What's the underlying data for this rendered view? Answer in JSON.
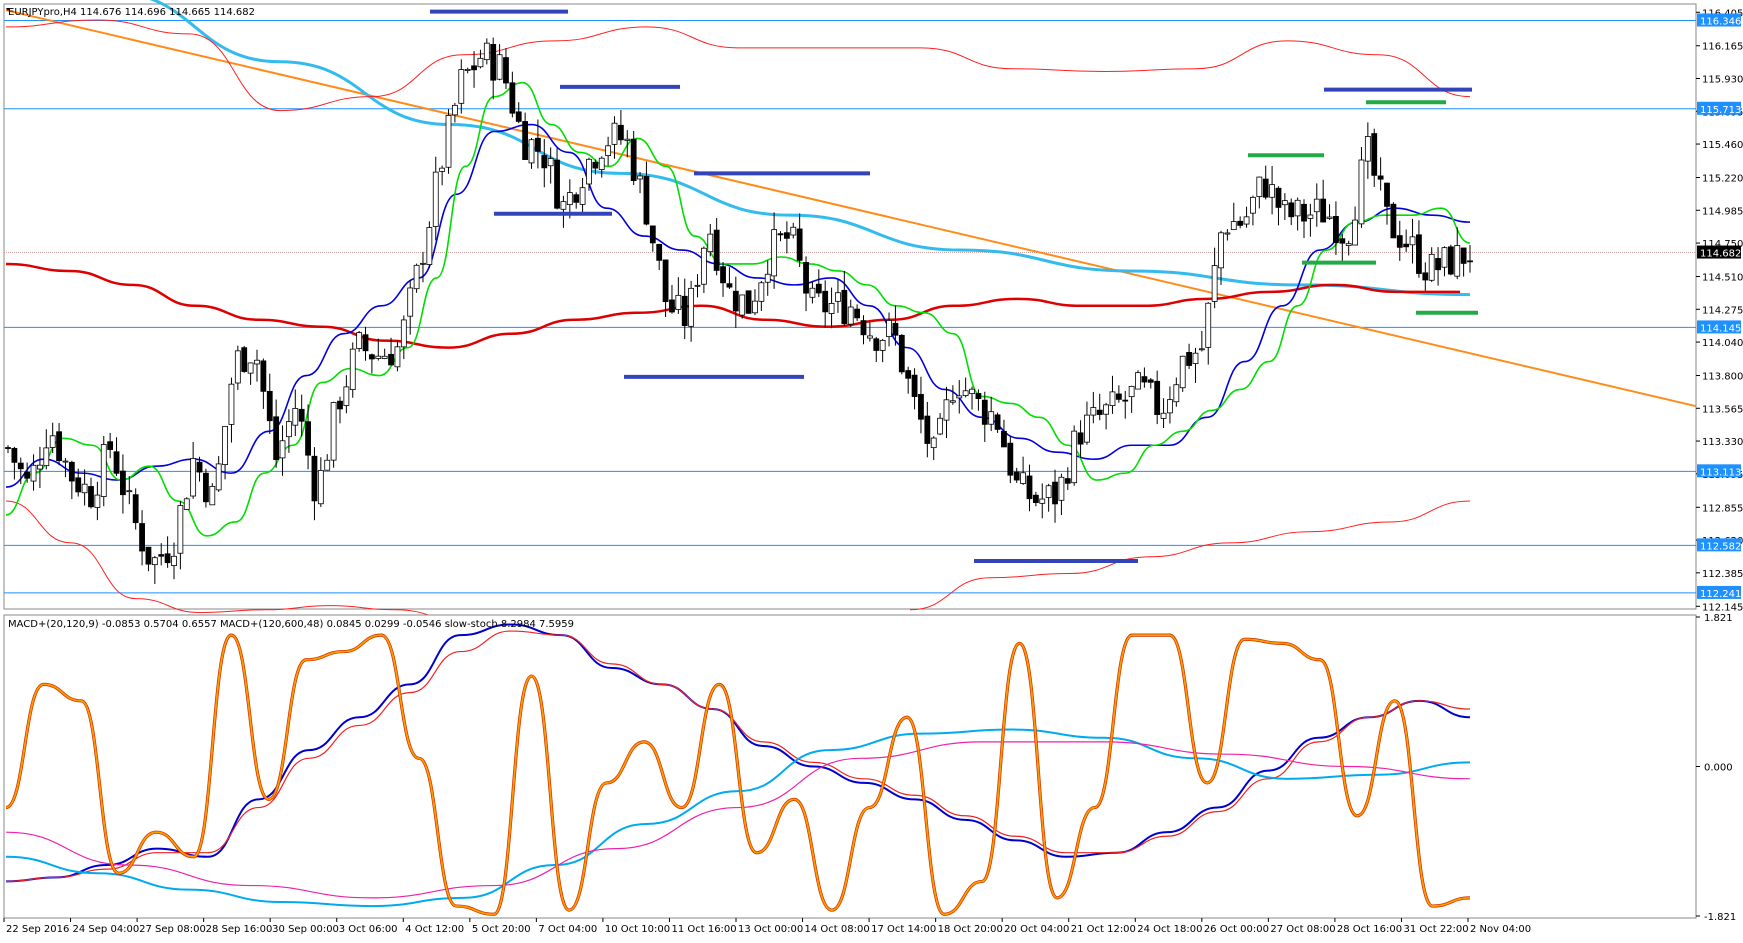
{
  "header": {
    "main_title": "EURJPYpro,H4  114.676 114.696 114.665 114.682",
    "indicator_title": "MACD+(20,120,9) -0.0853 0.5704 0.6557  MACD+(120,600,48) 0.0845 0.0299 -0.0546  slow-stoch 8.2984 7.5959"
  },
  "colors": {
    "grid_line": "#1e90ff",
    "price_label_bg": "#1e90ff",
    "current_label_bg": "#000000",
    "ema_fast": "#00dd00",
    "ema_mid": "#0000dd",
    "ema_slow": "#dd0000",
    "envelope": "#ff2020",
    "trend_cyan": "#33bbee",
    "trend_orange": "#ff8c1a",
    "resistance_bar": "#3344bb",
    "support_bar": "#22aa44",
    "macd_blue": "#0000cc",
    "macd_red": "#ee2222",
    "macd_cyan": "#00aaee",
    "macd_magenta": "#ee22aa",
    "stoch": "#ff9900"
  },
  "chart_data": [
    {
      "type": "candlestick",
      "symbol": "EURJPYpro",
      "timeframe": "H4",
      "ohlc_readout": [
        114.676,
        114.696,
        114.665,
        114.682
      ],
      "ylim": [
        112.14,
        116.45
      ],
      "price_ticks": [
        116.405,
        116.165,
        115.93,
        115.695,
        115.46,
        115.22,
        114.985,
        114.75,
        114.51,
        114.275,
        114.04,
        113.8,
        113.565,
        113.33,
        113.095,
        112.855,
        112.62,
        112.385,
        112.145
      ],
      "horizontal_levels": [
        116.346,
        115.713,
        114.145,
        113.113,
        112.582,
        112.241
      ],
      "current_price": 114.682,
      "x_ticks": [
        "22 Sep 2016",
        "24 Sep 04:00",
        "27 Sep 08:00",
        "28 Sep 16:00",
        "30 Sep 00:00",
        "3 Oct 06:00",
        "4 Oct 12:00",
        "5 Oct 20:00",
        "7 Oct 04:00",
        "10 Oct 10:00",
        "11 Oct 16:00",
        "13 Oct 00:00",
        "14 Oct 08:00",
        "17 Oct 14:00",
        "18 Oct 20:00",
        "20 Oct 04:00",
        "21 Oct 12:00",
        "24 Oct 18:00",
        "26 Oct 00:00",
        "27 Oct 08:00",
        "28 Oct 16:00",
        "31 Oct 22:00",
        "2 Nov 04:00"
      ],
      "close_path": [
        113.28,
        113.0,
        113.45,
        113.1,
        112.95,
        113.3,
        112.8,
        112.45,
        112.6,
        113.2,
        112.9,
        113.9,
        114.0,
        113.2,
        113.6,
        112.95,
        113.6,
        114.0,
        113.95,
        114.0,
        114.6,
        115.3,
        115.9,
        116.1,
        116.0,
        115.5,
        115.4,
        115.0,
        115.3,
        115.5,
        115.5,
        115.0,
        114.3,
        114.2,
        114.9,
        114.4,
        114.3,
        114.7,
        114.8,
        114.3,
        114.3,
        114.3,
        114.1,
        114.1,
        113.6,
        113.2,
        113.8,
        113.6,
        113.5,
        113.0,
        112.9,
        112.95,
        113.4,
        113.5,
        113.6,
        113.7,
        113.55,
        113.9,
        114.0,
        114.9,
        114.9,
        115.2,
        114.95,
        114.95,
        114.98,
        114.8,
        115.4,
        114.9,
        114.75,
        114.55,
        114.62,
        114.68
      ],
      "ema_fast_path": [
        112.8,
        113.1,
        113.35,
        113.3,
        113.05,
        113.15,
        112.9,
        112.65,
        112.75,
        113.1,
        113.3,
        113.75,
        113.85,
        113.8,
        114.0,
        114.5,
        115.3,
        115.8,
        115.9,
        115.6,
        115.4,
        115.3,
        115.5,
        115.3,
        114.8,
        114.6,
        114.6,
        114.65,
        114.6,
        114.55,
        114.45,
        114.3,
        114.25,
        114.1,
        113.65,
        113.6,
        113.5,
        113.3,
        113.05,
        113.1,
        113.3,
        113.4,
        113.55,
        113.7,
        113.9,
        114.3,
        114.7,
        114.9,
        114.95,
        114.95,
        115.0,
        114.75
      ],
      "ema_mid_path": [
        113.0,
        113.2,
        113.1,
        113.05,
        113.15,
        113.2,
        113.1,
        113.4,
        113.8,
        114.1,
        114.3,
        114.5,
        115.1,
        115.55,
        115.6,
        115.4,
        115.0,
        114.8,
        114.7,
        114.6,
        114.5,
        114.45,
        114.5,
        114.3,
        114.0,
        113.7,
        113.5,
        113.35,
        113.25,
        113.2,
        113.3,
        113.3,
        113.5,
        113.9,
        114.3,
        114.7,
        114.9,
        115.0,
        114.95,
        114.9
      ],
      "ema_slow_path": [
        114.6,
        114.55,
        114.45,
        114.3,
        114.2,
        114.15,
        114.05,
        114.0,
        114.1,
        114.2,
        114.25,
        114.3,
        114.2,
        114.15,
        114.2,
        114.3,
        114.35,
        114.3,
        114.3,
        114.35,
        114.4,
        114.45,
        114.4,
        114.4
      ]
    },
    {
      "type": "line",
      "panel": "indicator",
      "ylim": [
        -1.821,
        1.821
      ],
      "y_ticks": [
        1.821,
        0.0,
        -1.821
      ],
      "series": [
        {
          "name": "",
          "key": "macd_blue",
          "values": [
            -1.4,
            -1.35,
            -1.2,
            -1.0,
            -1.1,
            -0.4,
            0.2,
            0.6,
            1.0,
            1.6,
            1.73,
            1.6,
            1.2,
            1.0,
            0.7,
            0.25,
            0.0,
            -0.2,
            -0.4,
            -0.65,
            -0.9,
            -1.1,
            -1.05,
            -0.8,
            -0.5,
            -0.05,
            0.35,
            0.6,
            0.8,
            0.6
          ]
        },
        {
          "name": "",
          "key": "macd_red",
          "values": [
            -1.4,
            -1.35,
            -1.25,
            -1.05,
            -1.05,
            -0.5,
            0.1,
            0.5,
            0.9,
            1.4,
            1.65,
            1.6,
            1.25,
            1.0,
            0.7,
            0.3,
            0.05,
            -0.15,
            -0.35,
            -0.6,
            -0.85,
            -1.05,
            -1.05,
            -0.85,
            -0.55,
            -0.15,
            0.3,
            0.6,
            0.8,
            0.7
          ]
        },
        {
          "name": "",
          "key": "macd_cyan",
          "values": [
            -1.1,
            -1.3,
            -1.5,
            -1.65,
            -1.7,
            -1.6,
            -1.2,
            -0.7,
            -0.3,
            0.2,
            0.4,
            0.45,
            0.35,
            0.1,
            -0.15,
            -0.1,
            0.05
          ]
        },
        {
          "name": "",
          "key": "macd_magenta",
          "values": [
            -0.8,
            -1.2,
            -1.45,
            -1.6,
            -1.45,
            -1.0,
            -0.5,
            0.1,
            0.3,
            0.3,
            0.15,
            0.0,
            -0.15
          ]
        },
        {
          "name": "",
          "key": "stoch",
          "values": [
            -0.5,
            1.0,
            0.8,
            -1.3,
            -0.8,
            -1.1,
            1.6,
            -0.4,
            1.3,
            1.4,
            1.6,
            0.1,
            -1.7,
            -1.8,
            1.1,
            -1.75,
            -0.2,
            0.3,
            -0.5,
            1.0,
            -1.05,
            -0.4,
            -1.75,
            -0.5,
            0.6,
            -1.8,
            -1.4,
            1.5,
            -1.6,
            -0.5,
            1.6,
            1.6,
            -0.2,
            1.55,
            1.5,
            1.3,
            -0.6,
            0.8,
            -1.7,
            -1.6
          ]
        }
      ]
    }
  ]
}
